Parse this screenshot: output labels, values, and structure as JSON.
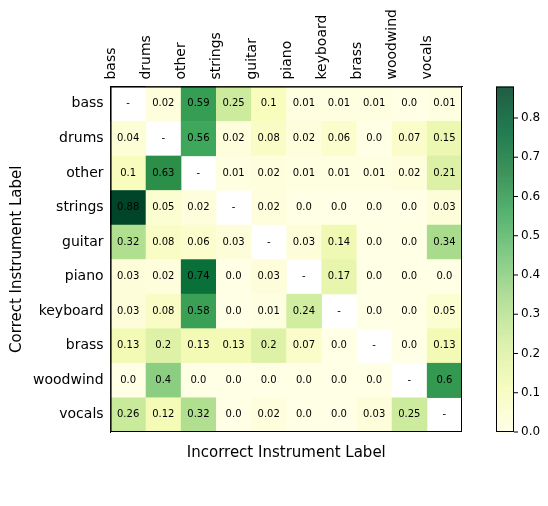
{
  "chart_data": {
    "type": "heatmap",
    "x_label": "Incorrect Instrument Label",
    "y_label": "Correct Instrument Label",
    "columns": [
      "bass",
      "drums",
      "other",
      "strings",
      "guitar",
      "piano",
      "keyboard",
      "brass",
      "woodwind",
      "vocals"
    ],
    "rows": [
      "bass",
      "drums",
      "other",
      "strings",
      "guitar",
      "piano",
      "keyboard",
      "brass",
      "woodwind",
      "vocals"
    ],
    "cells": [
      [
        null,
        0.02,
        0.59,
        0.25,
        0.1,
        0.01,
        0.01,
        0.01,
        0.0,
        0.01
      ],
      [
        0.04,
        null,
        0.56,
        0.02,
        0.08,
        0.02,
        0.06,
        0.0,
        0.07,
        0.15
      ],
      [
        0.1,
        0.63,
        null,
        0.01,
        0.02,
        0.01,
        0.01,
        0.01,
        0.02,
        0.21
      ],
      [
        0.88,
        0.05,
        0.02,
        null,
        0.02,
        0.0,
        0.0,
        0.0,
        0.0,
        0.03
      ],
      [
        0.32,
        0.08,
        0.06,
        0.03,
        null,
        0.03,
        0.14,
        0.0,
        0.0,
        0.34
      ],
      [
        0.03,
        0.02,
        0.74,
        0.0,
        0.03,
        null,
        0.17,
        0.0,
        0.0,
        0.0
      ],
      [
        0.03,
        0.08,
        0.58,
        0.0,
        0.01,
        0.24,
        null,
        0.0,
        0.0,
        0.05
      ],
      [
        0.13,
        0.2,
        0.13,
        0.13,
        0.2,
        0.07,
        0.0,
        null,
        0.0,
        0.13
      ],
      [
        0.0,
        0.4,
        0.0,
        0.0,
        0.0,
        0.0,
        0.0,
        0.0,
        null,
        0.6
      ],
      [
        0.26,
        0.12,
        0.32,
        0.0,
        0.02,
        0.0,
        0.0,
        0.03,
        0.25,
        null
      ]
    ],
    "value_labels": [
      [
        "-",
        "0.02",
        "0.59",
        "0.25",
        "0.1",
        "0.01",
        "0.01",
        "0.01",
        "0.0",
        "0.01"
      ],
      [
        "0.04",
        "-",
        "0.56",
        "0.02",
        "0.08",
        "0.02",
        "0.06",
        "0.0",
        "0.07",
        "0.15"
      ],
      [
        "0.1",
        "0.63",
        "-",
        "0.01",
        "0.02",
        "0.01",
        "0.01",
        "0.01",
        "0.02",
        "0.21"
      ],
      [
        "0.88",
        "0.05",
        "0.02",
        "-",
        "0.02",
        "0.0",
        "0.0",
        "0.0",
        "0.0",
        "0.03"
      ],
      [
        "0.32",
        "0.08",
        "0.06",
        "0.03",
        "-",
        "0.03",
        "0.14",
        "0.0",
        "0.0",
        "0.34"
      ],
      [
        "0.03",
        "0.02",
        "0.74",
        "0.0",
        "0.03",
        "-",
        "0.17",
        "0.0",
        "0.0",
        "0.0"
      ],
      [
        "0.03",
        "0.08",
        "0.58",
        "0.0",
        "0.01",
        "0.24",
        "-",
        "0.0",
        "0.0",
        "0.05"
      ],
      [
        "0.13",
        "0.2",
        "0.13",
        "0.13",
        "0.2",
        "0.07",
        "0.0",
        "-",
        "0.0",
        "0.13"
      ],
      [
        "0.0",
        "0.4",
        "0.0",
        "0.0",
        "0.0",
        "0.0",
        "0.0",
        "0.0",
        "-",
        "0.6"
      ],
      [
        "0.26",
        "0.12",
        "0.32",
        "0.0",
        "0.02",
        "0.0",
        "0.0",
        "0.03",
        "0.25",
        "-"
      ]
    ],
    "colorbar": {
      "range": [
        0,
        0.88
      ],
      "ticks": [
        {
          "value": 0,
          "label": "0.0"
        },
        0.1,
        0.2,
        0.3,
        0.4,
        0.5,
        0.6,
        0.7,
        0.8
      ]
    },
    "data_labels": true
  }
}
